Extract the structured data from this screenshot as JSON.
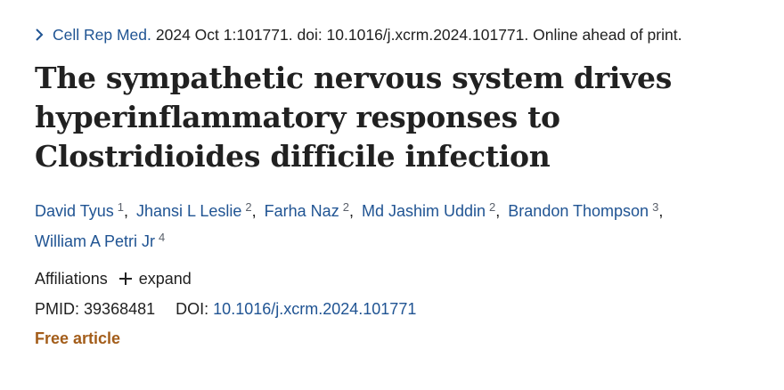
{
  "citation": {
    "journal": "Cell Rep Med.",
    "details": "2024 Oct 1:101771. doi: 10.1016/j.xcrm.2024.101771. Online ahead of print."
  },
  "title": "The sympathetic nervous system drives hyperinflammatory responses to Clostridioides difficile infection",
  "authors": [
    {
      "name": "David Tyus",
      "aff": "1"
    },
    {
      "name": "Jhansi L Leslie",
      "aff": "2"
    },
    {
      "name": "Farha Naz",
      "aff": "2"
    },
    {
      "name": "Md Jashim Uddin",
      "aff": "2"
    },
    {
      "name": "Brandon Thompson",
      "aff": "3"
    },
    {
      "name": "William A Petri Jr",
      "aff": "4"
    }
  ],
  "affiliations": {
    "label": "Affiliations",
    "expand_label": "expand"
  },
  "ids": {
    "pmid_label": "PMID:",
    "pmid": "39368481",
    "doi_label": "DOI:",
    "doi": "10.1016/j.xcrm.2024.101771"
  },
  "free_article": "Free article",
  "icons": {
    "citation_chevron": "chevron-right-icon",
    "expand": "plus-icon"
  },
  "colors": {
    "link": "#205493",
    "free_article": "#a35d1a",
    "text": "#212121"
  }
}
